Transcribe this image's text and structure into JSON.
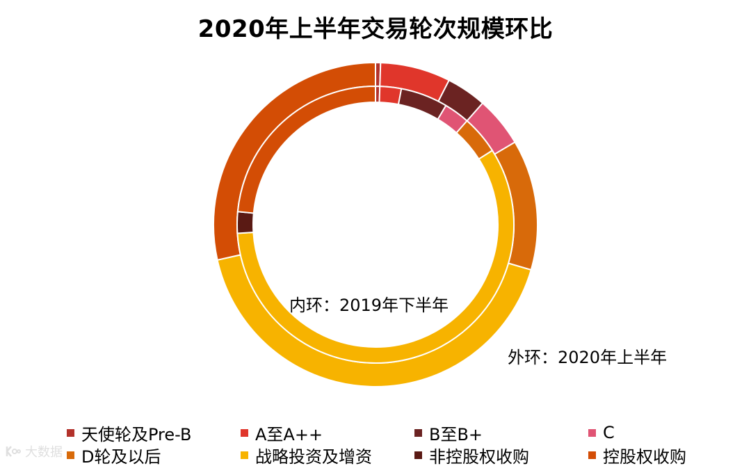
{
  "chart_data": {
    "type": "donut",
    "title": "2020年上半年交易轮次规模环比",
    "inner_ring_label": "内环：2019年下半年",
    "outer_ring_label": "外环：2020年上半年",
    "categories": [
      "天使轮及Pre-B",
      "A至A++",
      "B至B+",
      "C",
      "D轮及以后",
      "战略投资及增资",
      "非控股权收购",
      "控股权收购"
    ],
    "colors": [
      "#b3322b",
      "#e0362b",
      "#6b2322",
      "#e05474",
      "#d86a0a",
      "#f7b300",
      "#5a1a14",
      "#d34d05"
    ],
    "series": [
      {
        "name": "外环：2020年上半年",
        "ring": "outer",
        "values": [
          0.5,
          7.0,
          4.0,
          5.0,
          13.0,
          42.0,
          0.0,
          28.5
        ]
      },
      {
        "name": "内环：2019年下半年",
        "ring": "inner",
        "values": [
          0.5,
          2.5,
          5.5,
          3.0,
          4.5,
          58.0,
          2.5,
          23.5
        ]
      }
    ]
  },
  "watermark": {
    "text": "大数据"
  }
}
